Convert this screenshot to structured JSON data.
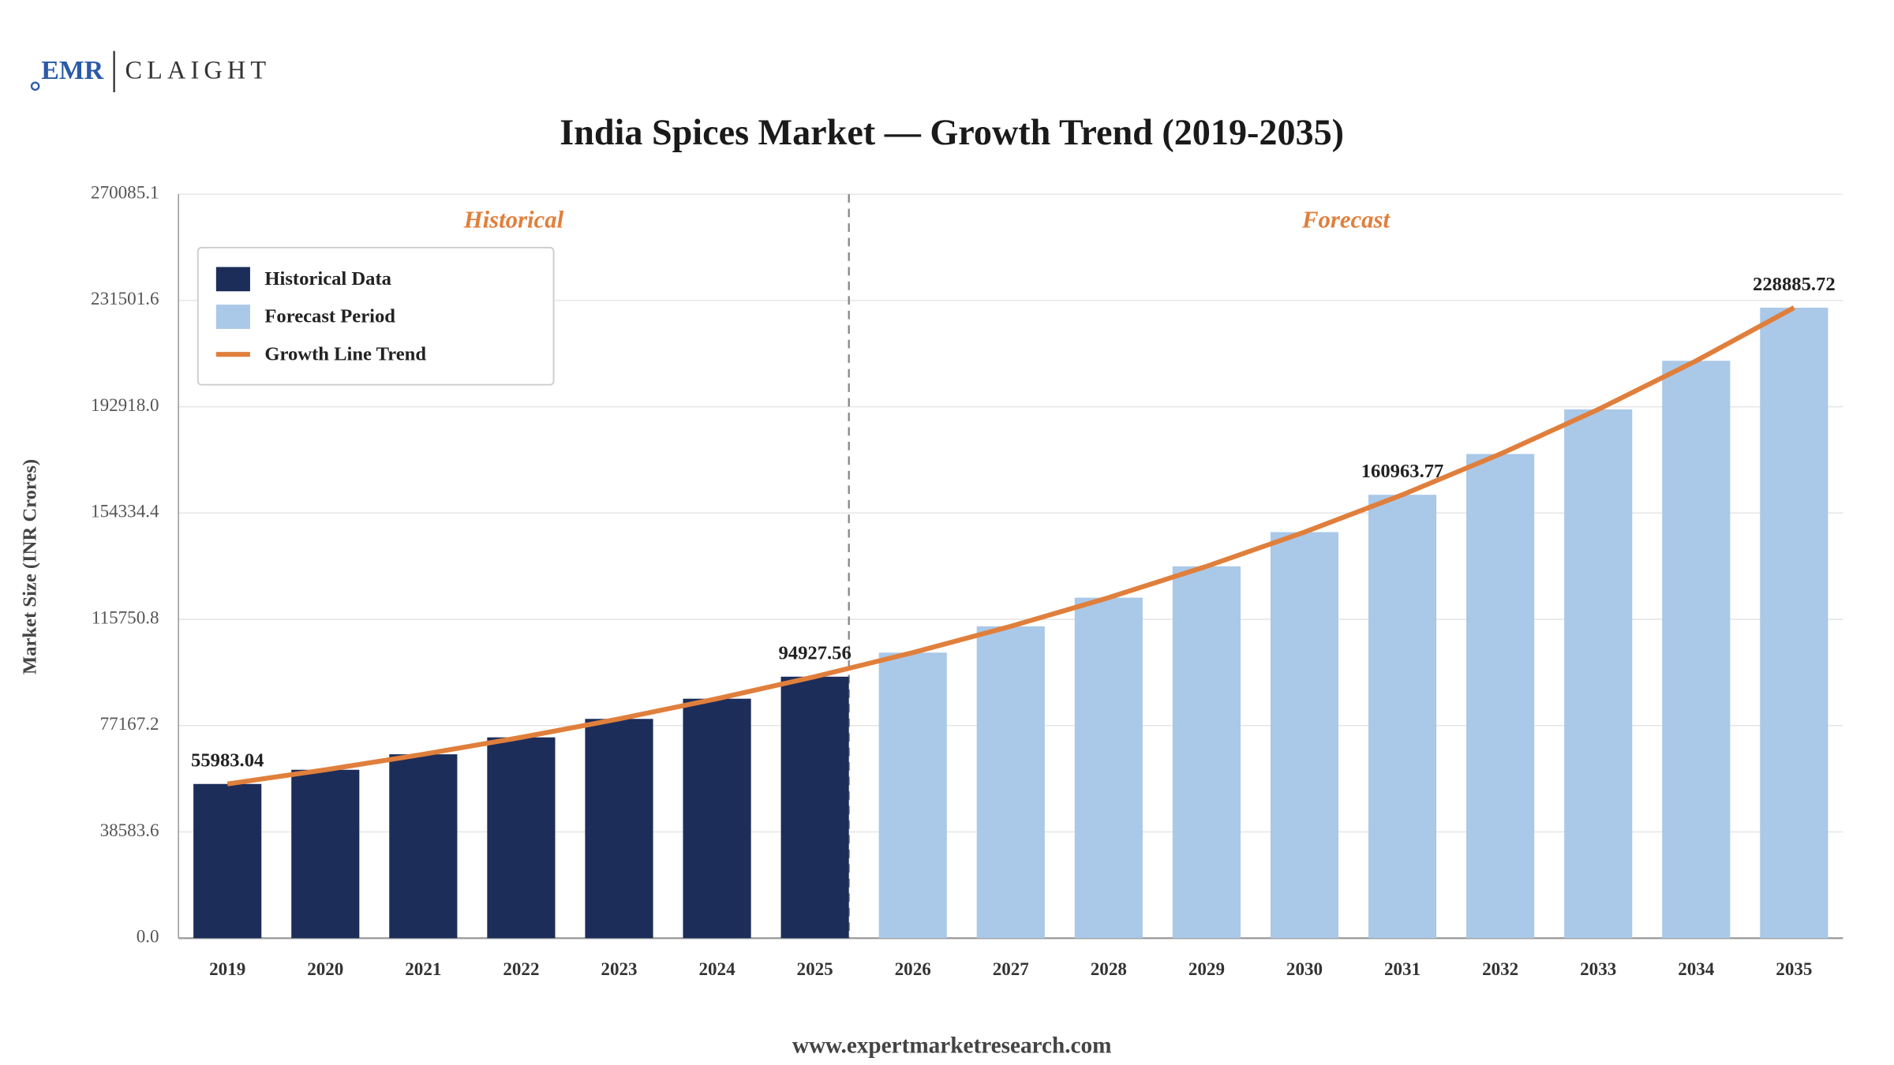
{
  "logo": {
    "left": "EMR",
    "right": "CLAIGHT"
  },
  "footer": "www.expertmarketresearch.com",
  "chart_data": {
    "type": "bar",
    "title": "India Spices Market — Growth Trend (2019-2035)",
    "y_label": "Market Size (INR Crores)",
    "annotations": [
      "Historical",
      "Forecast"
    ],
    "categories": [
      "2019",
      "2020",
      "2021",
      "2022",
      "2023",
      "2024",
      "2025",
      "2026",
      "2027",
      "2028",
      "2029",
      "2030",
      "2031",
      "2032",
      "2033",
      "2034",
      "2035"
    ],
    "series": [
      {
        "name": "Historical Data",
        "color": "#1c2d5a",
        "values": [
          55983.04,
          61133,
          66757,
          72899,
          79606,
          86930,
          94927.56,
          null,
          null,
          null,
          null,
          null,
          null,
          null,
          null,
          null,
          null
        ],
        "value_labels": [
          "55983.04",
          null,
          null,
          null,
          null,
          null,
          "94927.56",
          null,
          null,
          null,
          null,
          null,
          null,
          null,
          null,
          null,
          null
        ]
      },
      {
        "name": "Forecast Period",
        "color": "#aac8e8",
        "values": [
          null,
          null,
          null,
          null,
          null,
          null,
          null,
          103661,
          113198,
          123612,
          134985,
          147404,
          160963.77,
          175772,
          191943,
          209602,
          228885.72
        ],
        "value_labels": [
          null,
          null,
          null,
          null,
          null,
          null,
          null,
          null,
          null,
          null,
          null,
          null,
          "160963.77",
          null,
          null,
          null,
          "228885.72"
        ]
      },
      {
        "name": "Growth Line Trend",
        "color": "#e07f3c",
        "type": "line",
        "values": [
          55983.04,
          61133,
          66757,
          72899,
          79606,
          86930,
          94927.56,
          103661,
          113198,
          123612,
          134985,
          147404,
          160963.77,
          175772,
          191943,
          209602,
          228885.72
        ]
      }
    ],
    "ylim": [
      0,
      270085.1
    ],
    "yticks": [
      {
        "value": 0,
        "label": "0.0"
      },
      38583.6,
      77167.2,
      115750.8,
      154334.4,
      {
        "value": 192918,
        "label": "192918.0"
      },
      231501.6,
      270085.1
    ],
    "grid": true,
    "legend": "upper left"
  }
}
